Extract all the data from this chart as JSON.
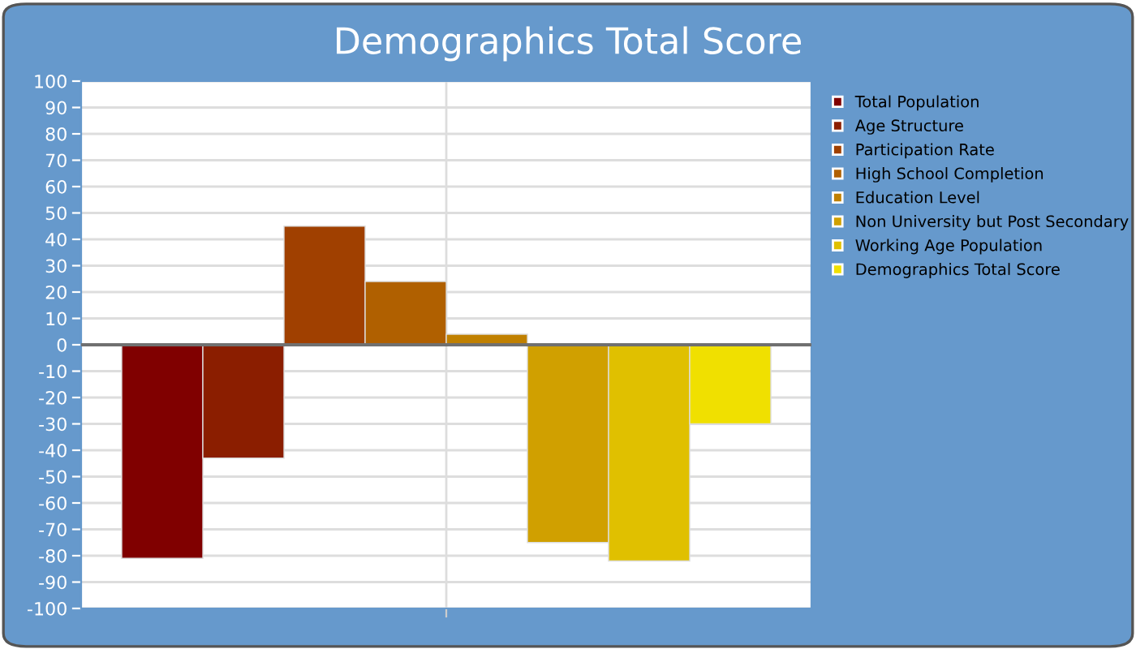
{
  "chart_data": {
    "type": "bar",
    "title": "Demographics Total Score",
    "categories": [
      null
    ],
    "series": [
      {
        "name": "Total Population",
        "color": "#800000",
        "values": [
          -81
        ]
      },
      {
        "name": "Age Structure",
        "color": "#8b1e00",
        "values": [
          -43
        ]
      },
      {
        "name": "Participation Rate",
        "color": "#a04000",
        "values": [
          45
        ]
      },
      {
        "name": "High School Completion",
        "color": "#b06000",
        "values": [
          24
        ]
      },
      {
        "name": "Education Level",
        "color": "#c08000",
        "values": [
          4
        ]
      },
      {
        "name": "Non University but Post Secondary",
        "color": "#d0a000",
        "values": [
          -75
        ]
      },
      {
        "name": "Working Age Population",
        "color": "#e0c000",
        "values": [
          -82
        ]
      },
      {
        "name": "Demographics Total Score",
        "color": "#f0e000",
        "values": [
          -30
        ]
      }
    ],
    "ylim": [
      -100,
      100
    ],
    "yticks": [
      -100,
      -90,
      -80,
      -70,
      -60,
      -50,
      -40,
      -30,
      -20,
      -10,
      0,
      10,
      20,
      30,
      40,
      50,
      60,
      70,
      80,
      90,
      100
    ],
    "ref_lines": [
      {
        "axis": "y",
        "value": 0,
        "color": "#707070"
      }
    ],
    "grid": true,
    "legend": "right"
  }
}
